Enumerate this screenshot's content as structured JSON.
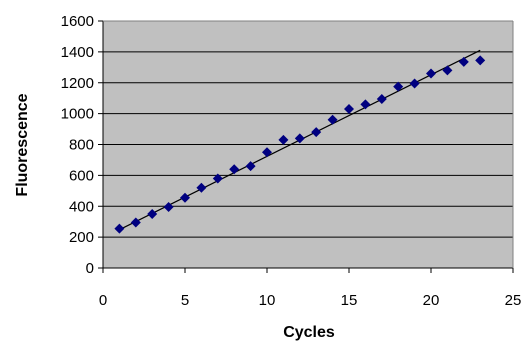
{
  "chart_data": {
    "type": "scatter",
    "title": "",
    "xlabel": "Cycles",
    "ylabel": "Fluorescence",
    "xlim": [
      0,
      25
    ],
    "ylim": [
      0,
      1600
    ],
    "xticks": [
      0,
      5,
      10,
      15,
      20,
      25
    ],
    "yticks": [
      0,
      200,
      400,
      600,
      800,
      1000,
      1200,
      1400,
      1600
    ],
    "grid": "horizontal",
    "legend": "none",
    "plot_background": "#c0c0c0",
    "marker_color": "#000080",
    "marker_shape": "diamond",
    "series": [
      {
        "x": [
          1,
          2,
          3,
          4,
          5,
          6,
          7,
          8,
          9,
          10,
          11,
          12,
          13,
          14,
          15,
          16,
          17,
          18,
          19,
          20,
          21,
          22,
          23
        ],
        "y": [
          255,
          295,
          350,
          395,
          455,
          520,
          580,
          640,
          660,
          750,
          830,
          840,
          880,
          960,
          1030,
          1060,
          1095,
          1175,
          1195,
          1260,
          1280,
          1335,
          1345
        ]
      }
    ],
    "trendline": {
      "type": "linear",
      "x": [
        1,
        23
      ],
      "y": [
        248,
        1410
      ]
    }
  }
}
